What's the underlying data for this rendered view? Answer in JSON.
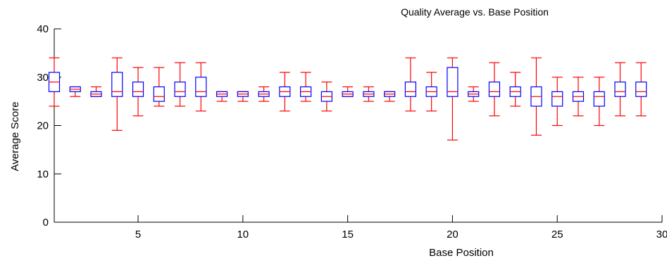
{
  "chart_data": {
    "type": "box",
    "title": "Quality Average vs. Base Position",
    "xlabel": "Base Position",
    "ylabel": "Average Score",
    "xlim": [
      1,
      30
    ],
    "ylim": [
      0,
      40
    ],
    "x_ticks": [
      5,
      10,
      15,
      20,
      25,
      30
    ],
    "y_ticks": [
      0,
      10,
      20,
      30,
      40
    ],
    "x_tick_labels": [
      "5",
      "10",
      "15",
      "20",
      "25",
      "30"
    ],
    "y_tick_labels": [
      "0",
      "10",
      "20",
      "30",
      "40"
    ],
    "grid": false,
    "colors": {
      "box": "#0000ff",
      "whisker": "#ff0000",
      "median": "#ff0000",
      "axis": "#000000"
    },
    "positions": [
      1,
      2,
      3,
      4,
      5,
      6,
      7,
      8,
      9,
      10,
      11,
      12,
      13,
      14,
      15,
      16,
      17,
      18,
      19,
      20,
      21,
      22,
      23,
      24,
      25,
      26,
      27,
      28,
      29
    ],
    "boxes": [
      {
        "x": 1,
        "whisker_low": 24,
        "q1": 27,
        "median": 29,
        "q3": 31,
        "whisker_high": 34
      },
      {
        "x": 2,
        "whisker_low": 26,
        "q1": 27,
        "median": 27.5,
        "q3": 28,
        "whisker_high": 28
      },
      {
        "x": 3,
        "whisker_low": 26,
        "q1": 26,
        "median": 26.5,
        "q3": 27,
        "whisker_high": 28
      },
      {
        "x": 4,
        "whisker_low": 19,
        "q1": 26,
        "median": 27,
        "q3": 31,
        "whisker_high": 34
      },
      {
        "x": 5,
        "whisker_low": 22,
        "q1": 26,
        "median": 27,
        "q3": 29,
        "whisker_high": 32
      },
      {
        "x": 6,
        "whisker_low": 24,
        "q1": 25,
        "median": 26,
        "q3": 28,
        "whisker_high": 32
      },
      {
        "x": 7,
        "whisker_low": 24,
        "q1": 26,
        "median": 27,
        "q3": 29,
        "whisker_high": 33
      },
      {
        "x": 8,
        "whisker_low": 23,
        "q1": 26,
        "median": 27,
        "q3": 30,
        "whisker_high": 33
      },
      {
        "x": 9,
        "whisker_low": 25,
        "q1": 26,
        "median": 26.5,
        "q3": 27,
        "whisker_high": 27
      },
      {
        "x": 10,
        "whisker_low": 25,
        "q1": 26,
        "median": 26.5,
        "q3": 27,
        "whisker_high": 27
      },
      {
        "x": 11,
        "whisker_low": 25,
        "q1": 26,
        "median": 26.5,
        "q3": 27,
        "whisker_high": 28
      },
      {
        "x": 12,
        "whisker_low": 23,
        "q1": 26,
        "median": 27,
        "q3": 28,
        "whisker_high": 31
      },
      {
        "x": 13,
        "whisker_low": 25,
        "q1": 26,
        "median": 27,
        "q3": 28,
        "whisker_high": 31
      },
      {
        "x": 14,
        "whisker_low": 23,
        "q1": 25,
        "median": 26,
        "q3": 27,
        "whisker_high": 29
      },
      {
        "x": 15,
        "whisker_low": 26,
        "q1": 26,
        "median": 26.5,
        "q3": 27,
        "whisker_high": 28
      },
      {
        "x": 16,
        "whisker_low": 25,
        "q1": 26,
        "median": 26.5,
        "q3": 27,
        "whisker_high": 28
      },
      {
        "x": 17,
        "whisker_low": 25,
        "q1": 26,
        "median": 26.5,
        "q3": 27,
        "whisker_high": 27
      },
      {
        "x": 18,
        "whisker_low": 23,
        "q1": 26,
        "median": 27,
        "q3": 29,
        "whisker_high": 34
      },
      {
        "x": 19,
        "whisker_low": 23,
        "q1": 26,
        "median": 27,
        "q3": 28,
        "whisker_high": 31
      },
      {
        "x": 20,
        "whisker_low": 17,
        "q1": 26,
        "median": 27,
        "q3": 32,
        "whisker_high": 34
      },
      {
        "x": 21,
        "whisker_low": 25,
        "q1": 26,
        "median": 26.5,
        "q3": 27,
        "whisker_high": 28
      },
      {
        "x": 22,
        "whisker_low": 22,
        "q1": 26,
        "median": 27,
        "q3": 29,
        "whisker_high": 33
      },
      {
        "x": 23,
        "whisker_low": 24,
        "q1": 26,
        "median": 27,
        "q3": 28,
        "whisker_high": 31
      },
      {
        "x": 24,
        "whisker_low": 18,
        "q1": 24,
        "median": 26,
        "q3": 28,
        "whisker_high": 34
      },
      {
        "x": 25,
        "whisker_low": 20,
        "q1": 24,
        "median": 26,
        "q3": 27,
        "whisker_high": 30
      },
      {
        "x": 26,
        "whisker_low": 22,
        "q1": 25,
        "median": 26,
        "q3": 27,
        "whisker_high": 30
      },
      {
        "x": 27,
        "whisker_low": 20,
        "q1": 24,
        "median": 26,
        "q3": 27,
        "whisker_high": 30
      },
      {
        "x": 28,
        "whisker_low": 22,
        "q1": 26,
        "median": 27,
        "q3": 29,
        "whisker_high": 33
      },
      {
        "x": 29,
        "whisker_low": 22,
        "q1": 26,
        "median": 27,
        "q3": 29,
        "whisker_high": 33
      }
    ]
  }
}
